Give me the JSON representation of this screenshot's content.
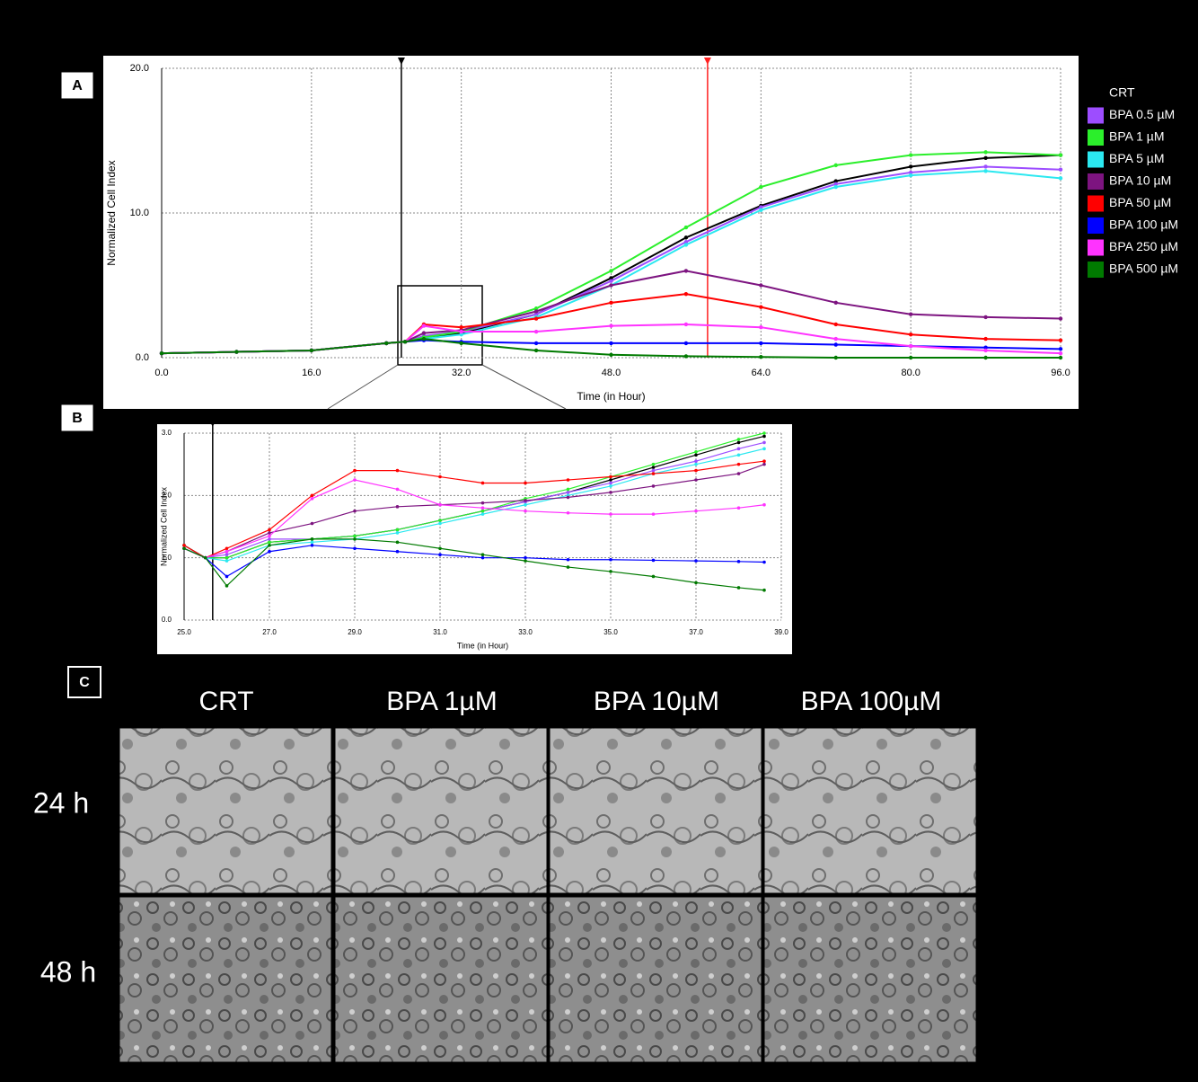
{
  "panels": {
    "labels": [
      "A",
      "B",
      "C"
    ]
  },
  "chart_data": [
    {
      "type": "line",
      "xlabel": "Time (in Hour)",
      "ylabel": "Normalized Cell Index",
      "x": [
        0,
        8,
        16,
        24,
        26,
        28,
        32,
        40,
        48,
        56,
        64,
        72,
        80,
        88,
        96
      ],
      "xlim": [
        0,
        96
      ],
      "ylim": [
        0,
        20
      ],
      "xticks": [
        {
          "value": 0,
          "label": "0.0"
        },
        {
          "value": 16,
          "label": "16.0"
        },
        {
          "value": 32,
          "label": "32.0"
        },
        {
          "value": 48,
          "label": "48.0"
        },
        {
          "value": 64,
          "label": "64.0"
        },
        {
          "value": 80,
          "label": "80.0"
        },
        {
          "value": 96,
          "label": "96.0"
        }
      ],
      "yticks": [
        {
          "value": 0,
          "label": "0.0"
        },
        {
          "value": 10,
          "label": "10.0"
        },
        {
          "value": 20,
          "label": "20.0"
        }
      ],
      "grid": true,
      "legend": "right",
      "markers": [
        {
          "x": 25.6,
          "color": "#000000"
        },
        {
          "x": 58.3,
          "color": "#ff2020"
        }
      ],
      "series": [
        {
          "name": "CRT",
          "color": "#000000",
          "values": [
            0.3,
            0.4,
            0.5,
            1.0,
            1.1,
            1.3,
            1.7,
            3.0,
            5.5,
            8.3,
            10.5,
            12.2,
            13.2,
            13.8,
            14.0
          ]
        },
        {
          "name": "BPA 0.5 µM",
          "color": "#9d4dff",
          "values": [
            0.3,
            0.4,
            0.5,
            1.0,
            1.1,
            1.5,
            1.8,
            3.0,
            5.3,
            8.0,
            10.4,
            12.0,
            12.8,
            13.2,
            13.0
          ]
        },
        {
          "name": "BPA 1 µM",
          "color": "#2bef2b",
          "values": [
            0.3,
            0.4,
            0.5,
            1.0,
            1.1,
            1.4,
            1.8,
            3.4,
            6.0,
            9.0,
            11.8,
            13.3,
            14.0,
            14.2,
            14.0
          ]
        },
        {
          "name": "BPA 5 µM",
          "color": "#2be8f0",
          "values": [
            0.3,
            0.4,
            0.5,
            1.0,
            1.1,
            1.3,
            1.6,
            2.8,
            5.0,
            7.8,
            10.2,
            11.8,
            12.6,
            12.9,
            12.4
          ]
        },
        {
          "name": "BPA 10 µM",
          "color": "#7d1480",
          "values": [
            0.3,
            0.4,
            0.5,
            1.0,
            1.1,
            1.7,
            1.9,
            3.2,
            5.0,
            6.0,
            5.0,
            3.8,
            3.0,
            2.8,
            2.7
          ]
        },
        {
          "name": "BPA 50 µM",
          "color": "#ff0000",
          "values": [
            0.3,
            0.4,
            0.5,
            1.0,
            1.1,
            2.3,
            2.1,
            2.7,
            3.8,
            4.4,
            3.5,
            2.3,
            1.6,
            1.3,
            1.2
          ]
        },
        {
          "name": "BPA 100 µM",
          "color": "#0000ff",
          "values": [
            0.3,
            0.4,
            0.5,
            1.0,
            1.1,
            1.2,
            1.1,
            1.0,
            1.0,
            1.0,
            1.0,
            0.9,
            0.8,
            0.7,
            0.6
          ]
        },
        {
          "name": "BPA 250 µM",
          "color": "#ff33ff",
          "values": [
            0.3,
            0.4,
            0.5,
            1.0,
            1.1,
            2.2,
            1.8,
            1.8,
            2.2,
            2.3,
            2.1,
            1.3,
            0.8,
            0.5,
            0.3
          ]
        },
        {
          "name": "BPA 500 µM",
          "color": "#007a00",
          "values": [
            0.3,
            0.4,
            0.5,
            1.0,
            1.1,
            1.3,
            1.0,
            0.5,
            0.2,
            0.1,
            0.05,
            0,
            0,
            0,
            0
          ]
        }
      ]
    },
    {
      "type": "line",
      "xlabel": "Time (in Hour)",
      "ylabel": "Normalized Cell Index",
      "x": [
        25,
        25.5,
        26,
        27,
        28,
        29,
        30,
        31,
        32,
        33,
        34,
        35,
        36,
        37,
        38,
        38.6
      ],
      "xlim": [
        25,
        39
      ],
      "ylim": [
        0,
        3
      ],
      "xticks": [
        {
          "value": 25,
          "label": "25.0"
        },
        {
          "value": 27,
          "label": "27.0"
        },
        {
          "value": 29,
          "label": "29.0"
        },
        {
          "value": 31,
          "label": "31.0"
        },
        {
          "value": 33,
          "label": "33.0"
        },
        {
          "value": 35,
          "label": "35.0"
        },
        {
          "value": 37,
          "label": "37.0"
        },
        {
          "value": 39,
          "label": "39.0"
        }
      ],
      "yticks": [
        {
          "value": 0,
          "label": "0.0"
        },
        {
          "value": 1,
          "label": "1.0"
        },
        {
          "value": 2,
          "label": "2.0"
        },
        {
          "value": 3,
          "label": "3.0"
        }
      ],
      "grid": true,
      "markers": [
        {
          "x": 25.67,
          "color": "#000000"
        }
      ],
      "series": [
        {
          "color": "#000000",
          "values": [
            1.2,
            1.0,
            1.0,
            1.25,
            1.3,
            1.35,
            1.45,
            1.6,
            1.75,
            1.9,
            2.05,
            2.25,
            2.45,
            2.65,
            2.85,
            2.95
          ]
        },
        {
          "color": "#9d4dff",
          "values": [
            1.2,
            1.0,
            1.05,
            1.3,
            1.3,
            1.35,
            1.45,
            1.6,
            1.75,
            1.9,
            2.05,
            2.2,
            2.4,
            2.55,
            2.75,
            2.85
          ]
        },
        {
          "color": "#2bef2b",
          "values": [
            1.2,
            1.0,
            1.0,
            1.25,
            1.3,
            1.35,
            1.45,
            1.6,
            1.75,
            1.95,
            2.1,
            2.3,
            2.5,
            2.7,
            2.9,
            3.0
          ]
        },
        {
          "color": "#2be8f0",
          "values": [
            1.2,
            1.0,
            0.95,
            1.2,
            1.25,
            1.3,
            1.4,
            1.55,
            1.7,
            1.85,
            2.0,
            2.15,
            2.35,
            2.5,
            2.65,
            2.75
          ]
        },
        {
          "color": "#7d1480",
          "values": [
            1.15,
            1.0,
            1.1,
            1.4,
            1.55,
            1.75,
            1.82,
            1.85,
            1.88,
            1.92,
            1.97,
            2.05,
            2.15,
            2.25,
            2.35,
            2.5
          ]
        },
        {
          "color": "#ff0000",
          "values": [
            1.2,
            1.0,
            1.15,
            1.45,
            2.0,
            2.4,
            2.4,
            2.3,
            2.2,
            2.2,
            2.25,
            2.3,
            2.35,
            2.4,
            2.5,
            2.55
          ]
        },
        {
          "color": "#0000ff",
          "values": [
            1.15,
            1.0,
            0.7,
            1.1,
            1.2,
            1.15,
            1.1,
            1.05,
            1.0,
            1.0,
            0.97,
            0.97,
            0.96,
            0.95,
            0.94,
            0.93
          ]
        },
        {
          "color": "#ff33ff",
          "values": [
            1.15,
            1.0,
            1.1,
            1.35,
            1.95,
            2.25,
            2.1,
            1.85,
            1.8,
            1.75,
            1.72,
            1.7,
            1.7,
            1.75,
            1.8,
            1.85
          ]
        },
        {
          "color": "#007a00",
          "values": [
            1.15,
            1.0,
            0.55,
            1.2,
            1.3,
            1.3,
            1.25,
            1.15,
            1.05,
            0.95,
            0.85,
            0.78,
            0.7,
            0.6,
            0.52,
            0.48
          ]
        }
      ]
    }
  ],
  "micrographs": {
    "columns": [
      "CRT",
      "BPA 1µM",
      "BPA 10µM",
      "BPA 100µM"
    ],
    "rows": [
      "24 h",
      "48 h"
    ]
  }
}
